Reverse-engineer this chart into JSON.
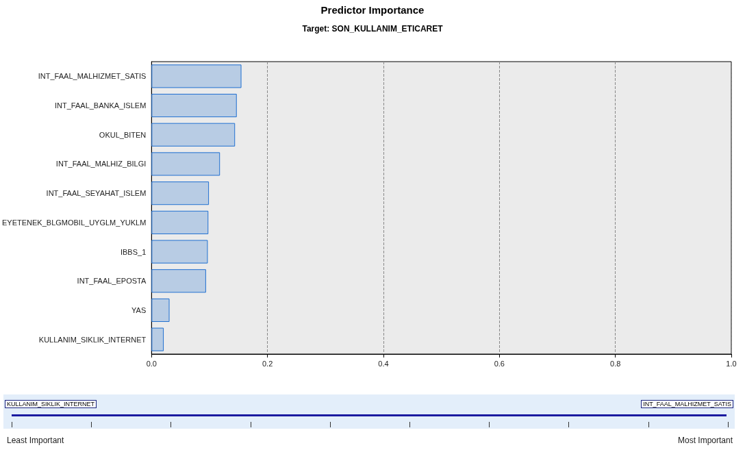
{
  "chart_data": {
    "type": "bar",
    "orientation": "horizontal",
    "title": "Predictor Importance",
    "subtitle": "Target: SON_KULLANIM_ETICARET",
    "categories": [
      "INT_FAAL_MALHIZMET_SATIS",
      "INT_FAAL_BANKA_ISLEM",
      "OKUL_BITEN",
      "INT_FAAL_MALHIZ_BILGI",
      "INT_FAAL_SEYAHAT_ISLEM",
      "EYETENEK_BLGMOBIL_UYGLM_YUKLM",
      "IBBS_1",
      "INT_FAAL_EPOSTA",
      "YAS",
      "KULLANIM_SIKLIK_INTERNET"
    ],
    "values": [
      0.155,
      0.147,
      0.144,
      0.118,
      0.099,
      0.098,
      0.097,
      0.094,
      0.031,
      0.021
    ],
    "color": "#b8cce4",
    "xlim": [
      0,
      1
    ],
    "xticks": [
      {
        "value": 0,
        "label": "0.0"
      },
      {
        "value": 0.2,
        "label": "0.2"
      },
      {
        "value": 0.4,
        "label": "0.4"
      },
      {
        "value": 0.6,
        "label": "0.6"
      },
      {
        "value": 0.8,
        "label": "0.8"
      },
      {
        "value": 1,
        "label": "1.0"
      }
    ],
    "grid": "x",
    "annotations": [
      "KULLANIM_SIKLIK_INTERNET",
      "INT_FAAL_MALHIZMET_SATIS",
      "Least Important",
      "Most Important"
    ]
  }
}
